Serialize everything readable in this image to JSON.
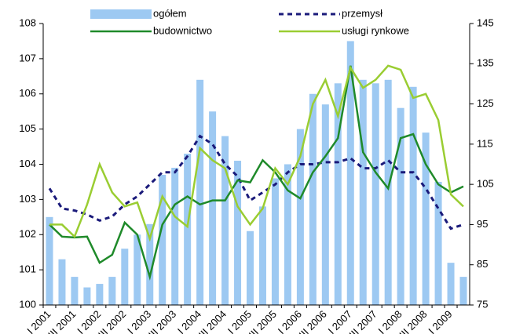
{
  "chart_data": {
    "type": "combo",
    "categories": [
      "I 2001",
      null,
      "III 2001",
      null,
      "I 2002",
      null,
      "III 2002",
      null,
      "I 2003",
      null,
      "III 2003",
      null,
      "I 2004",
      null,
      "III 2004",
      null,
      "I 2005",
      null,
      "III 2005",
      null,
      "I 2006",
      null,
      "III 2006",
      null,
      "I 2007",
      null,
      "III 2007",
      null,
      "I 2008",
      null,
      "III 2008",
      null,
      "I 2009",
      null
    ],
    "series": [
      {
        "name": "ogółem",
        "type": "bar",
        "axis": "y",
        "color": "#9dc9f2",
        "values": [
          102.5,
          101.3,
          100.8,
          100.5,
          100.6,
          100.8,
          101.6,
          102.0,
          102.3,
          103.7,
          103.9,
          104.3,
          106.4,
          105.5,
          104.8,
          104.1,
          102.1,
          102.8,
          103.6,
          104.0,
          105.0,
          106.0,
          105.7,
          106.3,
          107.5,
          106.4,
          106.3,
          106.4,
          105.6,
          106.2,
          104.9,
          103.5,
          101.2,
          100.8
        ]
      },
      {
        "name": "przemysł",
        "type": "line",
        "axis": "y2",
        "color": "#1a1a7a",
        "linestyle": "dashed",
        "values": [
          104,
          99,
          98.5,
          97.5,
          96,
          97,
          100,
          102,
          105,
          108,
          108,
          112,
          117,
          115,
          110,
          107,
          101,
          103,
          105,
          108,
          110,
          110,
          110.5,
          110.5,
          111.5,
          109,
          109,
          111,
          108,
          108,
          104,
          99,
          94,
          95
        ]
      },
      {
        "name": "budownictwo",
        "type": "line",
        "axis": "y2",
        "color": "#1f8a2a",
        "linestyle": "solid",
        "values": [
          95,
          92,
          91.8,
          92,
          85.5,
          87.5,
          95.5,
          92.5,
          82,
          95,
          100,
          102,
          100,
          101,
          101,
          106,
          105.5,
          111,
          108,
          103.5,
          101.5,
          108,
          112,
          116.5,
          134.5,
          113,
          108,
          104,
          116.5,
          117.5,
          110,
          105,
          103,
          104.5
        ]
      },
      {
        "name": "usługi rynkowe",
        "type": "line",
        "axis": "y2",
        "color": "#9acd32",
        "linestyle": "solid",
        "values": [
          95,
          95,
          92,
          100,
          110,
          103,
          99.5,
          100.5,
          91.5,
          102,
          97,
          94.5,
          114,
          111,
          109,
          99.5,
          95,
          99,
          109,
          105,
          112,
          125,
          131,
          122,
          134,
          129,
          131,
          134.5,
          133.5,
          126.5,
          127.5,
          121,
          102.5,
          99.5
        ]
      }
    ],
    "ylim": [
      100,
      108
    ],
    "yticks": [
      100,
      101,
      102,
      103,
      104,
      105,
      106,
      107,
      108
    ],
    "y2lim": [
      75,
      145
    ],
    "y2ticks": [
      75,
      85,
      95,
      105,
      115,
      125,
      135,
      145
    ],
    "grid": false
  }
}
